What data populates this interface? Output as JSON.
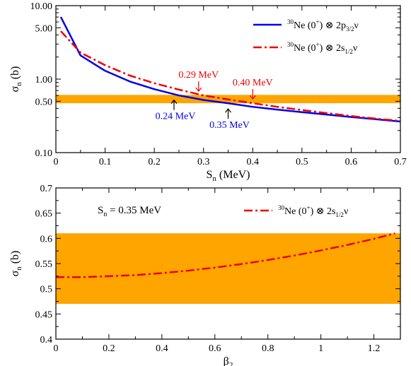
{
  "chart_data": [
    {
      "type": "line",
      "xlabel": "S",
      "xlabel_sub": "n",
      "xlabel_unit": "(MeV)",
      "ylabel": "σ",
      "ylabel_sub": "n",
      "ylabel_unit": "(b)",
      "xlim": [
        0,
        0.7
      ],
      "ylim": [
        0.1,
        10
      ],
      "yscale": "log",
      "x_ticks": [
        0,
        0.1,
        0.2,
        0.3,
        0.4,
        0.5,
        0.6,
        0.7
      ],
      "x_tick_labels": [
        "0",
        "0.1",
        "0.2",
        "0.3",
        "0.4",
        "0.5",
        "0.6",
        "0.7"
      ],
      "y_ticks": [
        0.1,
        0.5,
        1.0,
        5.0,
        10.0
      ],
      "y_tick_labels": [
        "0.10",
        "0.50",
        "1.00",
        "5.00",
        "10.00"
      ],
      "band": {
        "ymin": 0.47,
        "ymax": 0.61,
        "color": "#FFA500"
      },
      "legend_position": "top-right",
      "series": [
        {
          "name_pre": "30",
          "name_main": "Ne (0",
          "name_sup": "+",
          "name_mid": ") ⊗ 2p",
          "name_sub": "3/2",
          "name_post": "ν",
          "color": "#0000EE",
          "dash": "solid",
          "x": [
            0.01,
            0.05,
            0.1,
            0.15,
            0.2,
            0.25,
            0.3,
            0.35,
            0.4,
            0.45,
            0.5,
            0.55,
            0.6,
            0.65,
            0.7
          ],
          "y": [
            7.0,
            2.1,
            1.3,
            0.93,
            0.73,
            0.6,
            0.52,
            0.47,
            0.42,
            0.385,
            0.355,
            0.33,
            0.305,
            0.285,
            0.265
          ]
        },
        {
          "name_pre": "30",
          "name_main": "Ne (0",
          "name_sup": "+",
          "name_mid": ") ⊗ 2s",
          "name_sub": "1/2",
          "name_post": "ν",
          "color": "#EE0000",
          "dash": "dashdot",
          "x": [
            0.01,
            0.05,
            0.1,
            0.15,
            0.2,
            0.25,
            0.3,
            0.35,
            0.4,
            0.45,
            0.5,
            0.55,
            0.6,
            0.65,
            0.7
          ],
          "y": [
            4.5,
            2.3,
            1.55,
            1.12,
            0.88,
            0.72,
            0.6,
            0.53,
            0.47,
            0.42,
            0.38,
            0.345,
            0.315,
            0.29,
            0.27
          ]
        }
      ],
      "annotations": [
        {
          "text": "0.29 MeV",
          "x": 0.29,
          "y_point": 0.6,
          "color": "#EE0000",
          "side": "above"
        },
        {
          "text": "0.40 MeV",
          "x": 0.4,
          "y_point": 0.47,
          "color": "#EE0000",
          "side": "above"
        },
        {
          "text": "0.24 MeV",
          "x": 0.24,
          "y_point": 0.62,
          "color": "#0000EE",
          "side": "below"
        },
        {
          "text": "0.35 MeV",
          "x": 0.35,
          "y_point": 0.47,
          "color": "#0000EE",
          "side": "below"
        }
      ]
    },
    {
      "type": "line",
      "xlabel": "β",
      "xlabel_sub": "2",
      "ylabel": "σ",
      "ylabel_sub": "n",
      "ylabel_unit": "(b)",
      "xlim": [
        0,
        1.3
      ],
      "ylim": [
        0.4,
        0.7
      ],
      "x_ticks": [
        0,
        0.2,
        0.4,
        0.6,
        0.8,
        1.0,
        1.2
      ],
      "x_tick_labels": [
        "0",
        "0.2",
        "0.4",
        "0.6",
        "0.8",
        "1",
        "1.2"
      ],
      "y_ticks": [
        0.4,
        0.45,
        0.5,
        0.55,
        0.6,
        0.65,
        0.7
      ],
      "y_tick_labels": [
        "0.4",
        "0.45",
        "0.5",
        "0.55",
        "0.6",
        "0.65",
        "0.7"
      ],
      "band": {
        "ymin": 0.47,
        "ymax": 0.61,
        "color": "#FFA500"
      },
      "text_label": {
        "main": "S",
        "sub": "n",
        "rest": " = 0.35 MeV"
      },
      "legend_position": "top-right",
      "series": [
        {
          "name_pre": "30",
          "name_main": "Ne (0",
          "name_sup": "+",
          "name_mid": ") ⊗ 2s",
          "name_sub": "1/2",
          "name_post": "ν",
          "color": "#EE0000",
          "dash": "dashdot",
          "x": [
            0,
            0.1,
            0.2,
            0.3,
            0.4,
            0.5,
            0.6,
            0.7,
            0.8,
            0.9,
            1.0,
            1.1,
            1.2,
            1.28
          ],
          "y": [
            0.523,
            0.523,
            0.525,
            0.527,
            0.531,
            0.536,
            0.542,
            0.549,
            0.557,
            0.566,
            0.576,
            0.587,
            0.599,
            0.61
          ]
        }
      ]
    }
  ]
}
